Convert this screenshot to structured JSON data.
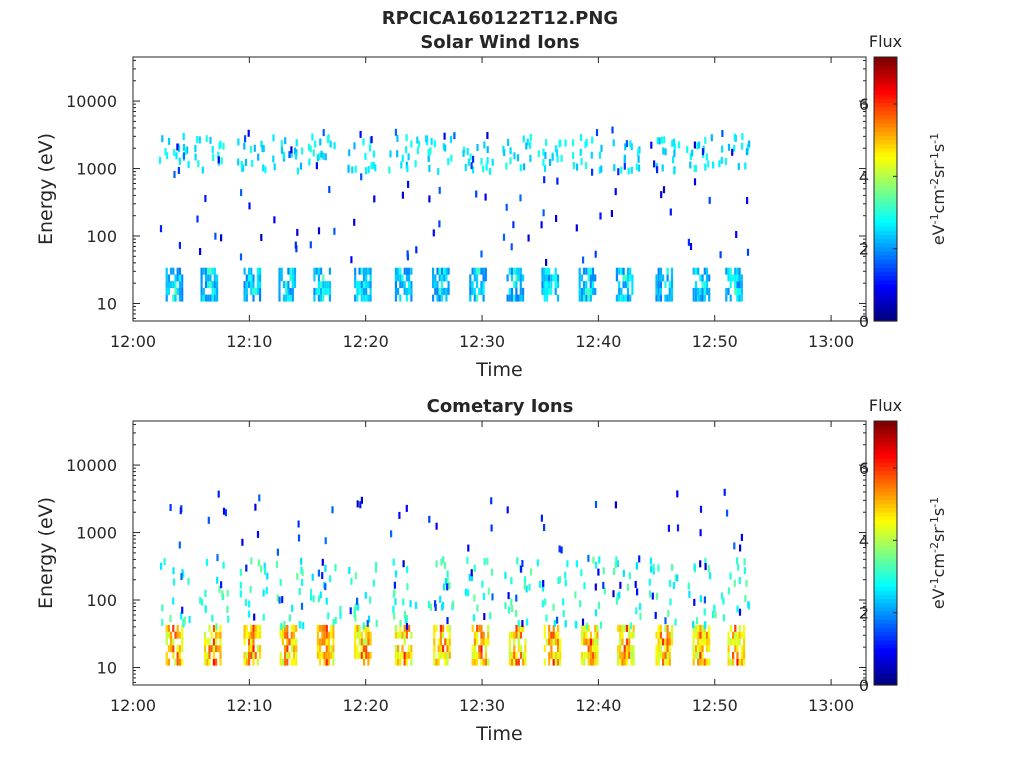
{
  "figure_title": "RPCICA160122T12.PNG",
  "colors": {
    "axis": "#262626",
    "background": "#ffffff"
  },
  "colormap": "jet",
  "chart_data": [
    {
      "type": "heatmap",
      "title": "Solar Wind Ions",
      "xlabel": "Time",
      "ylabel": "Energy (eV)",
      "x_ticks": [
        "12:00",
        "12:10",
        "12:20",
        "12:30",
        "12:40",
        "12:50",
        "13:00"
      ],
      "x_range_minutes_after_12_00": [
        0,
        63
      ],
      "y_scale": "log",
      "y_ticks": [
        "10",
        "100",
        "1000",
        "10000"
      ],
      "y_range_eV": [
        5.5,
        45000
      ],
      "colorbar": {
        "title": "Flux",
        "label": "eV-1cm-2sr-1s-1",
        "ticks": [
          "0",
          "2",
          "4",
          "6"
        ],
        "range": [
          0,
          7.3
        ]
      },
      "bursts_minutes": [
        3.5,
        6.5,
        10.2,
        13.2,
        16.2,
        19.7,
        23.2,
        26.4,
        29.6,
        32.8,
        35.8,
        39.0,
        42.2,
        45.6,
        48.8,
        51.6
      ],
      "low_band_eV": [
        12,
        35
      ],
      "low_band_flux": [
        1.8,
        3.4
      ],
      "high_band_eV": [
        900,
        3000
      ],
      "high_band_flux": [
        2.2,
        3.0
      ]
    },
    {
      "type": "heatmap",
      "title": "Cometary Ions",
      "xlabel": "Time",
      "ylabel": "Energy (eV)",
      "x_ticks": [
        "12:00",
        "12:10",
        "12:20",
        "12:30",
        "12:40",
        "12:50",
        "13:00"
      ],
      "x_range_minutes_after_12_00": [
        0,
        63
      ],
      "y_scale": "log",
      "y_ticks": [
        "10",
        "100",
        "1000",
        "10000"
      ],
      "y_range_eV": [
        5.5,
        45000
      ],
      "colorbar": {
        "title": "Flux",
        "label": "eV-1cm-2sr-1s-1",
        "ticks": [
          "0",
          "2",
          "4",
          "6"
        ],
        "range": [
          0,
          7.3
        ]
      },
      "bursts_minutes": [
        3.5,
        6.8,
        10.2,
        13.3,
        16.5,
        19.7,
        23.2,
        26.5,
        29.8,
        33.0,
        36.0,
        39.2,
        42.3,
        45.6,
        48.8,
        51.8
      ],
      "low_band_eV": [
        12,
        45
      ],
      "low_band_flux": [
        4.0,
        6.5
      ],
      "high_band_eV": [
        40,
        400
      ],
      "high_band_flux": [
        2.5,
        3.5
      ]
    }
  ]
}
